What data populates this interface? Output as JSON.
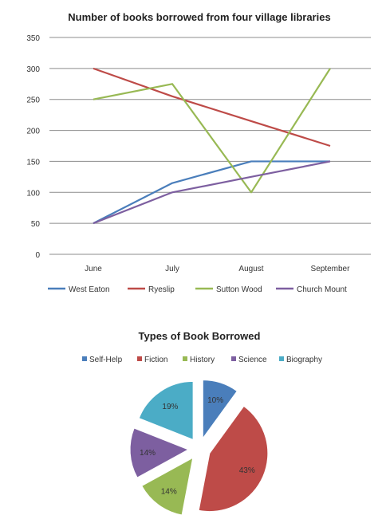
{
  "chart_data": [
    {
      "type": "line",
      "title": "Number of books borrowed from four village libraries",
      "categories": [
        "June",
        "July",
        "August",
        "September"
      ],
      "ylim": [
        0,
        350
      ],
      "yticks": [
        0,
        50,
        100,
        150,
        200,
        250,
        300,
        350
      ],
      "grid": true,
      "legend_position": "bottom",
      "series": [
        {
          "name": "West Eaton",
          "color": "#4a7ebb",
          "values": [
            50,
            115,
            150,
            150
          ]
        },
        {
          "name": "Ryeslip",
          "color": "#be4b48",
          "values": [
            300,
            255,
            215,
            175
          ]
        },
        {
          "name": "Sutton Wood",
          "color": "#98b954",
          "values": [
            250,
            275,
            100,
            300
          ]
        },
        {
          "name": "Church Mount",
          "color": "#7d5fa0",
          "values": [
            50,
            100,
            125,
            150
          ]
        }
      ]
    },
    {
      "type": "pie",
      "title": "Types of Book Borrowed",
      "legend_position": "top",
      "exploded": true,
      "slices": [
        {
          "label": "Self-Help",
          "value": 10,
          "text": "10%",
          "color": "#4a7ebb"
        },
        {
          "label": "Fiction",
          "value": 43,
          "text": "43%",
          "color": "#be4b48"
        },
        {
          "label": "History",
          "value": 14,
          "text": "14%",
          "color": "#98b954"
        },
        {
          "label": "Science",
          "value": 14,
          "text": "14%",
          "color": "#7d5fa0"
        },
        {
          "label": "Biography",
          "value": 19,
          "text": "19%",
          "color": "#4bacc6"
        }
      ]
    }
  ]
}
